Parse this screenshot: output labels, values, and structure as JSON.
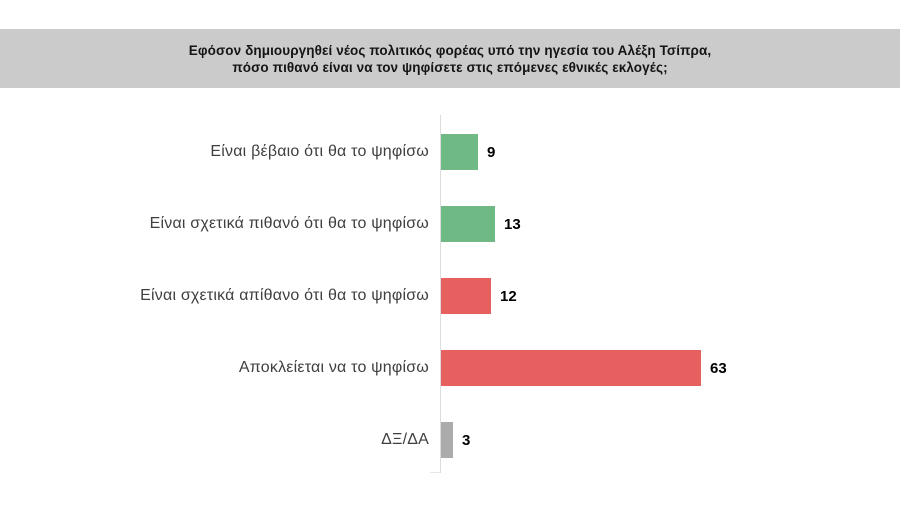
{
  "header": {
    "line1": "Εφόσον δημιουργηθεί νέος πολιτικός φορέας υπό την ηγεσία του Αλέξη Τσίπρα,",
    "line2": "πόσο πιθανό είναι να τον ψηφίσετε στις επόμενες εθνικές εκλογές;"
  },
  "chart_data": {
    "type": "bar",
    "orientation": "horizontal",
    "title": "Εφόσον δημιουργηθεί νέος πολιτικός φορέας υπό την ηγεσία του Αλέξη Τσίπρα, πόσο πιθανό είναι να τον ψηφίσετε στις επόμενες εθνικές εκλογές;",
    "categories": [
      "Είναι βέβαιο ότι θα το ψηφίσω",
      "Είναι σχετικά πιθανό ότι θα το ψηφίσω",
      "Είναι σχετικά απίθανο ότι θα το ψηφίσω",
      "Αποκλείεται να το ψηφίσω",
      "ΔΞ/ΔΑ"
    ],
    "values": [
      9,
      13,
      12,
      63,
      3
    ],
    "bar_colors": [
      "#6fb984",
      "#6fb984",
      "#e6605f",
      "#e6605f",
      "#ababab"
    ],
    "xlim": [
      0,
      70
    ],
    "value_labels_shown": true,
    "grid": false,
    "legend": false
  },
  "colors": {
    "header_bg": "#cbcbcb",
    "axis_line": "#dcdcdc",
    "category_text": "#3f3f3f",
    "value_text": "#000000",
    "background": "#ffffff"
  }
}
